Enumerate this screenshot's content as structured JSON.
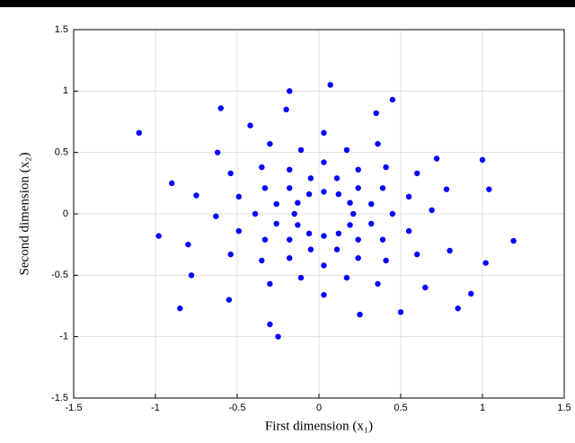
{
  "chart_data": {
    "type": "scatter",
    "x_label": "First dimension (x₁)",
    "y_label": "Second dimension (x₂)",
    "xlim": [
      -1.5,
      1.5
    ],
    "ylim": [
      -1.5,
      1.5
    ],
    "xticks": [
      -1.5,
      -1,
      -0.5,
      0,
      0.5,
      1,
      1.5
    ],
    "yticks": [
      -1.5,
      -1,
      -0.5,
      0,
      0.5,
      1,
      1.5
    ],
    "grid": true,
    "color": "#0000ff",
    "x": [
      0.21,
      0.19,
      0.12,
      0.03,
      -0.06,
      -0.13,
      -0.15,
      -0.13,
      -0.06,
      0.03,
      0.12,
      0.19,
      0.32,
      0.24,
      0.11,
      -0.05,
      -0.18,
      -0.26,
      -0.26,
      -0.18,
      -0.05,
      0.11,
      0.24,
      0.32,
      0.45,
      0.39,
      0.24,
      0.03,
      -0.18,
      -0.33,
      -0.39,
      -0.33,
      -0.18,
      0.03,
      0.24,
      0.39,
      0.55,
      0.41,
      0.17,
      -0.11,
      -0.35,
      -0.49,
      -0.49,
      -0.35,
      -0.11,
      0.17,
      0.41,
      0.55,
      0.69,
      0.6,
      0.36,
      0.03,
      -0.3,
      -0.54,
      -0.63,
      -0.54,
      -0.3,
      0.03,
      0.36,
      0.6,
      0.72,
      -0.62,
      0.35,
      -0.2,
      0.07,
      -0.18,
      0.45,
      0.78,
      -0.75,
      -0.8,
      0.8,
      0.65,
      -0.55,
      -0.3,
      -0.25,
      0.25,
      0.5,
      -0.85,
      -1.1,
      1.19,
      1.0,
      1.04,
      1.02,
      0.93,
      -0.98,
      -0.9,
      -0.6,
      0.85,
      -0.42,
      -0.78
    ],
    "y": [
      0,
      0.09,
      0.16,
      0.18,
      0.16,
      0.09,
      0,
      -0.09,
      -0.16,
      -0.18,
      -0.16,
      -0.09,
      0.08,
      0.21,
      0.29,
      0.29,
      0.21,
      0.08,
      -0.08,
      -0.21,
      -0.29,
      -0.29,
      -0.21,
      -0.08,
      0,
      0.21,
      0.36,
      0.42,
      0.36,
      0.21,
      0,
      -0.21,
      -0.36,
      -0.42,
      -0.36,
      -0.21,
      0.14,
      0.38,
      0.52,
      0.52,
      0.38,
      0.14,
      -0.14,
      -0.38,
      -0.52,
      -0.52,
      -0.38,
      -0.14,
      0.03,
      0.33,
      0.57,
      0.66,
      0.57,
      0.33,
      -0.02,
      -0.33,
      -0.57,
      -0.66,
      -0.57,
      -0.33,
      0.45,
      0.5,
      0.82,
      0.85,
      1.05,
      1.0,
      0.93,
      0.2,
      0.15,
      -0.25,
      -0.3,
      -0.6,
      -0.7,
      -0.9,
      -1.0,
      -0.82,
      -0.8,
      -0.77,
      0.66,
      -0.22,
      0.44,
      0.2,
      -0.4,
      -0.65,
      -0.18,
      0.25,
      0.86,
      -0.77,
      0.72,
      -0.5
    ]
  }
}
